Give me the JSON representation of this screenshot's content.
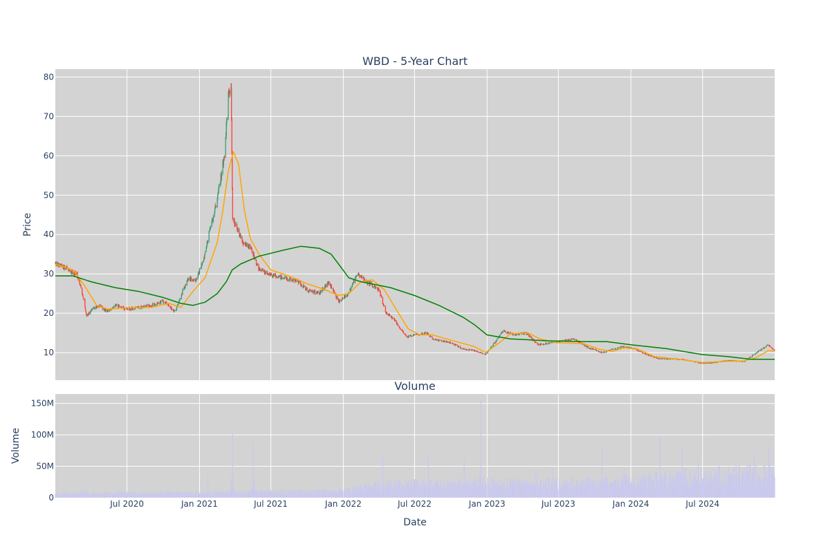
{
  "chart_data": [
    {
      "type": "candlestick",
      "title": "WBD - 5-Year Chart",
      "ylabel": "Price",
      "xlabel": "",
      "ylim": [
        3,
        82
      ],
      "xlim": [
        "2020-01-01",
        "2024-12-31"
      ],
      "grid": true,
      "colors": {
        "increasing": "#3d9970",
        "decreasing": "#ff4136",
        "ma_fast": "#ffa500",
        "ma_slow": "#008000",
        "plot_bg": "#d3d3d3",
        "grid": "#ffffff"
      },
      "x_ticks": [
        "Jul 2020",
        "Jan 2021",
        "Jul 2021",
        "Jan 2022",
        "Jul 2022",
        "Jan 2023",
        "Jul 2023",
        "Jan 2024",
        "Jul 2024"
      ],
      "y_ticks": [
        10,
        20,
        30,
        40,
        50,
        60,
        70,
        80
      ],
      "price_path": [
        [
          "2020-01-01",
          32.5
        ],
        [
          "2020-01-20",
          32.0
        ],
        [
          "2020-02-10",
          30.5
        ],
        [
          "2020-02-25",
          30.0
        ],
        [
          "2020-03-10",
          25.0
        ],
        [
          "2020-03-20",
          19.0
        ],
        [
          "2020-04-01",
          21.0
        ],
        [
          "2020-04-20",
          22.0
        ],
        [
          "2020-05-10",
          20.5
        ],
        [
          "2020-06-01",
          22.0
        ],
        [
          "2020-07-01",
          21.0
        ],
        [
          "2020-08-01",
          21.5
        ],
        [
          "2020-09-01",
          22.0
        ],
        [
          "2020-10-01",
          23.0
        ],
        [
          "2020-11-01",
          20.5
        ],
        [
          "2020-11-20",
          26.0
        ],
        [
          "2020-12-05",
          29.0
        ],
        [
          "2020-12-20",
          28.0
        ],
        [
          "2021-01-10",
          33.0
        ],
        [
          "2021-01-25",
          40.0
        ],
        [
          "2021-02-05",
          44.0
        ],
        [
          "2021-02-20",
          52.0
        ],
        [
          "2021-03-05",
          60.0
        ],
        [
          "2021-03-15",
          75.0
        ],
        [
          "2021-03-22",
          78.0
        ],
        [
          "2021-03-26",
          44.0
        ],
        [
          "2021-04-05",
          42.0
        ],
        [
          "2021-04-20",
          38.0
        ],
        [
          "2021-05-10",
          37.0
        ],
        [
          "2021-06-01",
          31.0
        ],
        [
          "2021-07-01",
          30.0
        ],
        [
          "2021-08-01",
          29.0
        ],
        [
          "2021-09-01",
          28.5
        ],
        [
          "2021-10-01",
          26.0
        ],
        [
          "2021-11-01",
          25.0
        ],
        [
          "2021-11-25",
          28.0
        ],
        [
          "2021-12-20",
          23.0
        ],
        [
          "2022-01-15",
          25.0
        ],
        [
          "2022-02-05",
          30.0
        ],
        [
          "2022-03-01",
          28.0
        ],
        [
          "2022-04-01",
          26.0
        ],
        [
          "2022-04-20",
          20.0
        ],
        [
          "2022-05-10",
          18.5
        ],
        [
          "2022-06-10",
          14.0
        ],
        [
          "2022-07-01",
          14.5
        ],
        [
          "2022-08-01",
          15.0
        ],
        [
          "2022-08-15",
          13.5
        ],
        [
          "2022-10-01",
          12.5
        ],
        [
          "2022-11-01",
          11.0
        ],
        [
          "2022-12-01",
          10.5
        ],
        [
          "2022-12-28",
          9.5
        ],
        [
          "2023-01-20",
          12.5
        ],
        [
          "2023-02-10",
          15.5
        ],
        [
          "2023-03-10",
          14.5
        ],
        [
          "2023-04-10",
          15.0
        ],
        [
          "2023-05-10",
          12.0
        ],
        [
          "2023-06-10",
          12.5
        ],
        [
          "2023-07-10",
          13.0
        ],
        [
          "2023-08-10",
          13.5
        ],
        [
          "2023-09-10",
          11.5
        ],
        [
          "2023-10-20",
          10.0
        ],
        [
          "2023-12-10",
          11.5
        ],
        [
          "2024-01-10",
          11.0
        ],
        [
          "2024-02-10",
          9.5
        ],
        [
          "2024-03-10",
          8.5
        ],
        [
          "2024-05-10",
          8.3
        ],
        [
          "2024-07-01",
          7.3
        ],
        [
          "2024-08-01",
          7.5
        ],
        [
          "2024-09-01",
          8.0
        ],
        [
          "2024-10-15",
          7.8
        ],
        [
          "2024-11-15",
          10.0
        ],
        [
          "2024-12-15",
          12.0
        ],
        [
          "2024-12-31",
          10.5
        ]
      ],
      "series": [
        {
          "kind": "ma_fast",
          "points": [
            [
              "2020-01-01",
              32.5
            ],
            [
              "2020-02-15",
              31.0
            ],
            [
              "2020-03-15",
              27.0
            ],
            [
              "2020-04-15",
              22.0
            ],
            [
              "2020-05-15",
              21.0
            ],
            [
              "2020-06-15",
              21.3
            ],
            [
              "2020-09-01",
              21.5
            ],
            [
              "2020-10-15",
              22.5
            ],
            [
              "2020-11-15",
              21.5
            ],
            [
              "2020-12-15",
              25.5
            ],
            [
              "2021-01-15",
              29.0
            ],
            [
              "2021-02-15",
              38.0
            ],
            [
              "2021-03-01",
              46.0
            ],
            [
              "2021-03-15",
              56.0
            ],
            [
              "2021-03-28",
              61.0
            ],
            [
              "2021-04-10",
              58.0
            ],
            [
              "2021-04-25",
              46.0
            ],
            [
              "2021-05-10",
              39.0
            ],
            [
              "2021-06-01",
              35.0
            ],
            [
              "2021-07-01",
              31.0
            ],
            [
              "2021-08-15",
              29.5
            ],
            [
              "2021-10-01",
              27.5
            ],
            [
              "2021-11-15",
              26.0
            ],
            [
              "2021-12-20",
              24.5
            ],
            [
              "2022-01-15",
              25.0
            ],
            [
              "2022-02-15",
              28.0
            ],
            [
              "2022-03-15",
              28.5
            ],
            [
              "2022-04-15",
              26.0
            ],
            [
              "2022-05-15",
              21.0
            ],
            [
              "2022-06-15",
              16.0
            ],
            [
              "2022-07-15",
              14.5
            ],
            [
              "2022-08-15",
              14.5
            ],
            [
              "2022-10-15",
              12.8
            ],
            [
              "2022-12-01",
              11.5
            ],
            [
              "2022-12-28",
              10.0
            ],
            [
              "2023-02-01",
              12.5
            ],
            [
              "2023-03-01",
              14.8
            ],
            [
              "2023-04-15",
              15.0
            ],
            [
              "2023-05-15",
              13.5
            ],
            [
              "2023-07-01",
              12.5
            ],
            [
              "2023-09-01",
              12.3
            ],
            [
              "2023-10-15",
              10.8
            ],
            [
              "2023-11-15",
              10.3
            ],
            [
              "2023-12-15",
              11.2
            ],
            [
              "2024-01-15",
              11.0
            ],
            [
              "2024-03-01",
              9.0
            ],
            [
              "2024-05-01",
              8.3
            ],
            [
              "2024-07-01",
              7.5
            ],
            [
              "2024-09-01",
              7.8
            ],
            [
              "2024-10-15",
              7.9
            ],
            [
              "2024-11-15",
              8.8
            ],
            [
              "2024-12-15",
              10.5
            ],
            [
              "2024-12-31",
              10.3
            ]
          ]
        },
        {
          "kind": "ma_slow",
          "points": [
            [
              "2020-01-01",
              29.5
            ],
            [
              "2020-02-15",
              29.5
            ],
            [
              "2020-04-01",
              28.0
            ],
            [
              "2020-06-01",
              26.5
            ],
            [
              "2020-08-01",
              25.5
            ],
            [
              "2020-10-01",
              24.0
            ],
            [
              "2020-11-15",
              22.5
            ],
            [
              "2020-12-15",
              22.0
            ],
            [
              "2021-01-15",
              22.8
            ],
            [
              "2021-02-15",
              25.0
            ],
            [
              "2021-03-10",
              28.0
            ],
            [
              "2021-03-25",
              31.0
            ],
            [
              "2021-04-15",
              32.5
            ],
            [
              "2021-06-01",
              34.5
            ],
            [
              "2021-08-01",
              36.0
            ],
            [
              "2021-09-15",
              37.0
            ],
            [
              "2021-11-01",
              36.5
            ],
            [
              "2021-12-01",
              35.0
            ],
            [
              "2021-12-20",
              32.5
            ],
            [
              "2022-01-15",
              29.0
            ],
            [
              "2022-02-15",
              28.0
            ],
            [
              "2022-05-01",
              26.5
            ],
            [
              "2022-07-01",
              24.5
            ],
            [
              "2022-09-01",
              22.0
            ],
            [
              "2022-11-01",
              19.0
            ],
            [
              "2022-12-01",
              17.0
            ],
            [
              "2023-01-01",
              14.5
            ],
            [
              "2023-03-01",
              13.5
            ],
            [
              "2023-06-01",
              13.0
            ],
            [
              "2023-09-01",
              12.8
            ],
            [
              "2023-11-01",
              12.8
            ],
            [
              "2024-01-01",
              12.0
            ],
            [
              "2024-04-01",
              11.0
            ],
            [
              "2024-07-01",
              9.5
            ],
            [
              "2024-09-01",
              9.0
            ],
            [
              "2024-11-01",
              8.3
            ],
            [
              "2024-12-31",
              8.3
            ]
          ]
        }
      ]
    },
    {
      "type": "bar",
      "title": "Volume",
      "xlabel": "Date",
      "ylabel": "Volume",
      "ylim": [
        0,
        165000000
      ],
      "y_ticks": [
        0,
        50000000,
        100000000,
        150000000
      ],
      "y_tick_labels": [
        "0",
        "50M",
        "100M",
        "150M"
      ],
      "x_ticks": [
        "Jul 2020",
        "Jan 2021",
        "Jul 2021",
        "Jan 2022",
        "Jul 2022",
        "Jan 2023",
        "Jul 2023",
        "Jan 2024",
        "Jul 2024"
      ],
      "grid": true,
      "colors": {
        "bar": "#c8c8f0",
        "plot_bg": "#d3d3d3"
      },
      "baseline_by_period": [
        [
          "2020-01-01",
          6000000
        ],
        [
          "2021-01-01",
          7000000
        ],
        [
          "2021-06-01",
          8000000
        ],
        [
          "2022-01-01",
          10000000
        ],
        [
          "2022-04-10",
          18000000
        ],
        [
          "2023-01-01",
          20000000
        ],
        [
          "2023-12-01",
          22000000
        ],
        [
          "2024-06-01",
          30000000
        ],
        [
          "2024-12-31",
          35000000
        ]
      ],
      "notable_spikes": [
        [
          "2020-03-12",
          15000000
        ],
        [
          "2020-03-20",
          13000000
        ],
        [
          "2021-01-22",
          37000000
        ],
        [
          "2021-03-26",
          105000000
        ],
        [
          "2021-05-17",
          88000000
        ],
        [
          "2022-01-08",
          40000000
        ],
        [
          "2022-04-11",
          67000000
        ],
        [
          "2022-08-05",
          65000000
        ],
        [
          "2022-11-04",
          60000000
        ],
        [
          "2022-12-16",
          155000000
        ],
        [
          "2023-05-05",
          45000000
        ],
        [
          "2023-06-16",
          48000000
        ],
        [
          "2023-10-20",
          80000000
        ],
        [
          "2023-12-15",
          48000000
        ],
        [
          "2024-03-15",
          97000000
        ],
        [
          "2024-04-20",
          52000000
        ],
        [
          "2024-05-10",
          80000000
        ],
        [
          "2024-06-20",
          58000000
        ],
        [
          "2024-07-20",
          70000000
        ],
        [
          "2024-11-08",
          70000000
        ],
        [
          "2024-12-16",
          82000000
        ]
      ]
    }
  ]
}
